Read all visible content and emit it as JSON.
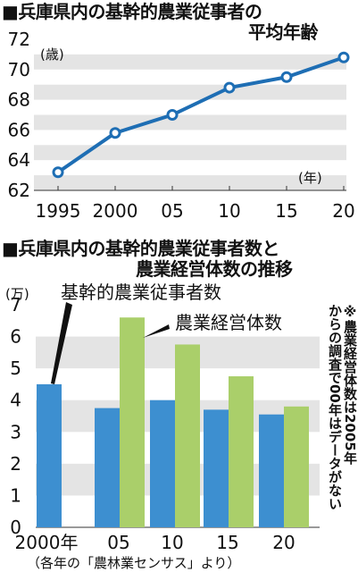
{
  "titles": {
    "chart1_line1": "■兵庫県内の基幹的農業従事者の",
    "chart1_line2": "平均年齢",
    "chart2_line1": "■兵庫県内の基幹的農業従事者数と",
    "chart2_line2": "農業経営体数の推移"
  },
  "note": {
    "col1": "※農業経営体数は2005年",
    "col2": "からの調査で00年はデータがない"
  },
  "source": "（各年の「農林業センサス」より）",
  "colors": {
    "line": "#1e6eb4",
    "blue_bar": "#3d8fd0",
    "green_bar": "#aacf6a",
    "band": "#e4e4e4"
  },
  "chart_data": [
    {
      "type": "line",
      "title": "■兵庫県内の基幹的農業従事者の平均年齢",
      "y_unit": "(歳)",
      "x_unit": "(年)",
      "x": [
        "1995",
        "2000",
        "05",
        "10",
        "15",
        "20"
      ],
      "series": [
        {
          "values": [
            63.2,
            65.8,
            67.0,
            68.8,
            69.5,
            70.8
          ]
        }
      ],
      "ylim": [
        62,
        72
      ],
      "yticks": [
        62,
        64,
        66,
        68,
        70,
        72
      ],
      "grid": "alternating bands"
    },
    {
      "type": "bar",
      "title": "■兵庫県内の基幹的農業従事者数と農業経営体数の推移",
      "y_unit": "(万)",
      "categories": [
        "2000年",
        "05",
        "10",
        "15",
        "20"
      ],
      "series": [
        {
          "name": "基幹的農業従事者数",
          "values": [
            4.5,
            3.75,
            4.0,
            3.7,
            3.55
          ]
        },
        {
          "name": "農業経営体数",
          "values": [
            null,
            6.6,
            5.75,
            4.75,
            3.8
          ]
        }
      ],
      "ylim": [
        0,
        7
      ],
      "yticks": [
        0,
        1,
        2,
        3,
        4,
        5,
        6,
        7
      ],
      "grid": "alternating bands"
    }
  ]
}
